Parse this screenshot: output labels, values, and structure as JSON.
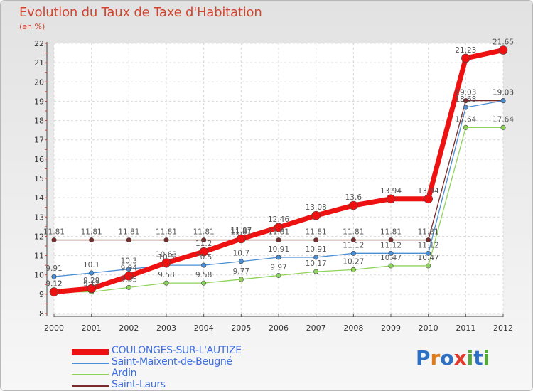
{
  "title": "Evolution du Taux de Taxe d'Habitation",
  "unit_label": "(en %)",
  "logo": {
    "letters": [
      "P",
      "r",
      "o",
      "x",
      "i",
      "t",
      "i"
    ],
    "colors": [
      "#2c6fc4",
      "#e07b1a",
      "#2c6fc4",
      "#e03a2a",
      "#55a83b",
      "#2c6fc4",
      "#55a83b"
    ]
  },
  "chart_data": {
    "type": "line",
    "x": [
      "2000",
      "2001",
      "2002",
      "2003",
      "2004",
      "2005",
      "2006",
      "2007",
      "2008",
      "2009",
      "2010",
      "2011",
      "2012"
    ],
    "ylim": [
      8,
      22
    ],
    "yticks": [
      "8",
      "9",
      "10",
      "11",
      "12",
      "13",
      "14",
      "15",
      "16",
      "17",
      "18",
      "19",
      "20",
      "21",
      "22"
    ],
    "grid": true,
    "legend_position": "bottom-left",
    "series": [
      {
        "name": "Saint-Laurs",
        "color": "#7a2a2a",
        "values": [
          11.81,
          11.81,
          11.81,
          11.81,
          11.81,
          11.81,
          11.81,
          11.81,
          11.81,
          11.81,
          11.81,
          19.03,
          19.03
        ],
        "labels": [
          "11.81",
          "11.81",
          "11.81",
          "11.81",
          "11.81",
          "11.81",
          "11.81",
          "11.81",
          "11.81",
          "11.81",
          "11.81",
          "19.03",
          "19.03"
        ]
      },
      {
        "name": "Ardin",
        "color": "#8fd45a",
        "values": [
          9.12,
          9.12,
          9.35,
          9.58,
          9.58,
          9.77,
          9.97,
          10.17,
          10.27,
          10.47,
          10.47,
          17.64,
          17.64
        ],
        "labels": [
          "9.12",
          "9.12",
          "9.35",
          "9.58",
          "9.58",
          "9.77",
          "9.97",
          "10.17",
          "10.27",
          "10.47",
          "10.47",
          "17.64",
          "17.64"
        ]
      },
      {
        "name": "Saint-Maixent-de-Beugné",
        "color": "#4a8ed6",
        "values": [
          9.91,
          10.1,
          10.3,
          10.5,
          10.5,
          10.7,
          10.91,
          10.91,
          11.12,
          11.12,
          11.12,
          18.68,
          19.03
        ],
        "labels": [
          "9.91",
          "10.1",
          "10.3",
          "10.5",
          "10.5",
          "10.7",
          "10.91",
          "10.91",
          "11.12",
          "11.12",
          "11.12",
          "18.68",
          "19.03"
        ]
      },
      {
        "name": "COULONGES-SUR-L'AUTIZE",
        "color": "#ee1111",
        "values": [
          9.12,
          9.29,
          9.94,
          10.63,
          11.2,
          11.87,
          12.46,
          13.08,
          13.6,
          13.94,
          13.94,
          21.23,
          21.65
        ],
        "labels": [
          "9.12",
          "9.29",
          "9.94",
          "10.63",
          "11.2",
          "11.87",
          "12.46",
          "13.08",
          "13.6",
          "13.94",
          "13.94",
          "21.23",
          "21.65"
        ]
      }
    ],
    "legend_order": [
      "COULONGES-SUR-L'AUTIZE",
      "Saint-Maixent-de-Beugné",
      "Ardin",
      "Saint-Laurs"
    ]
  }
}
